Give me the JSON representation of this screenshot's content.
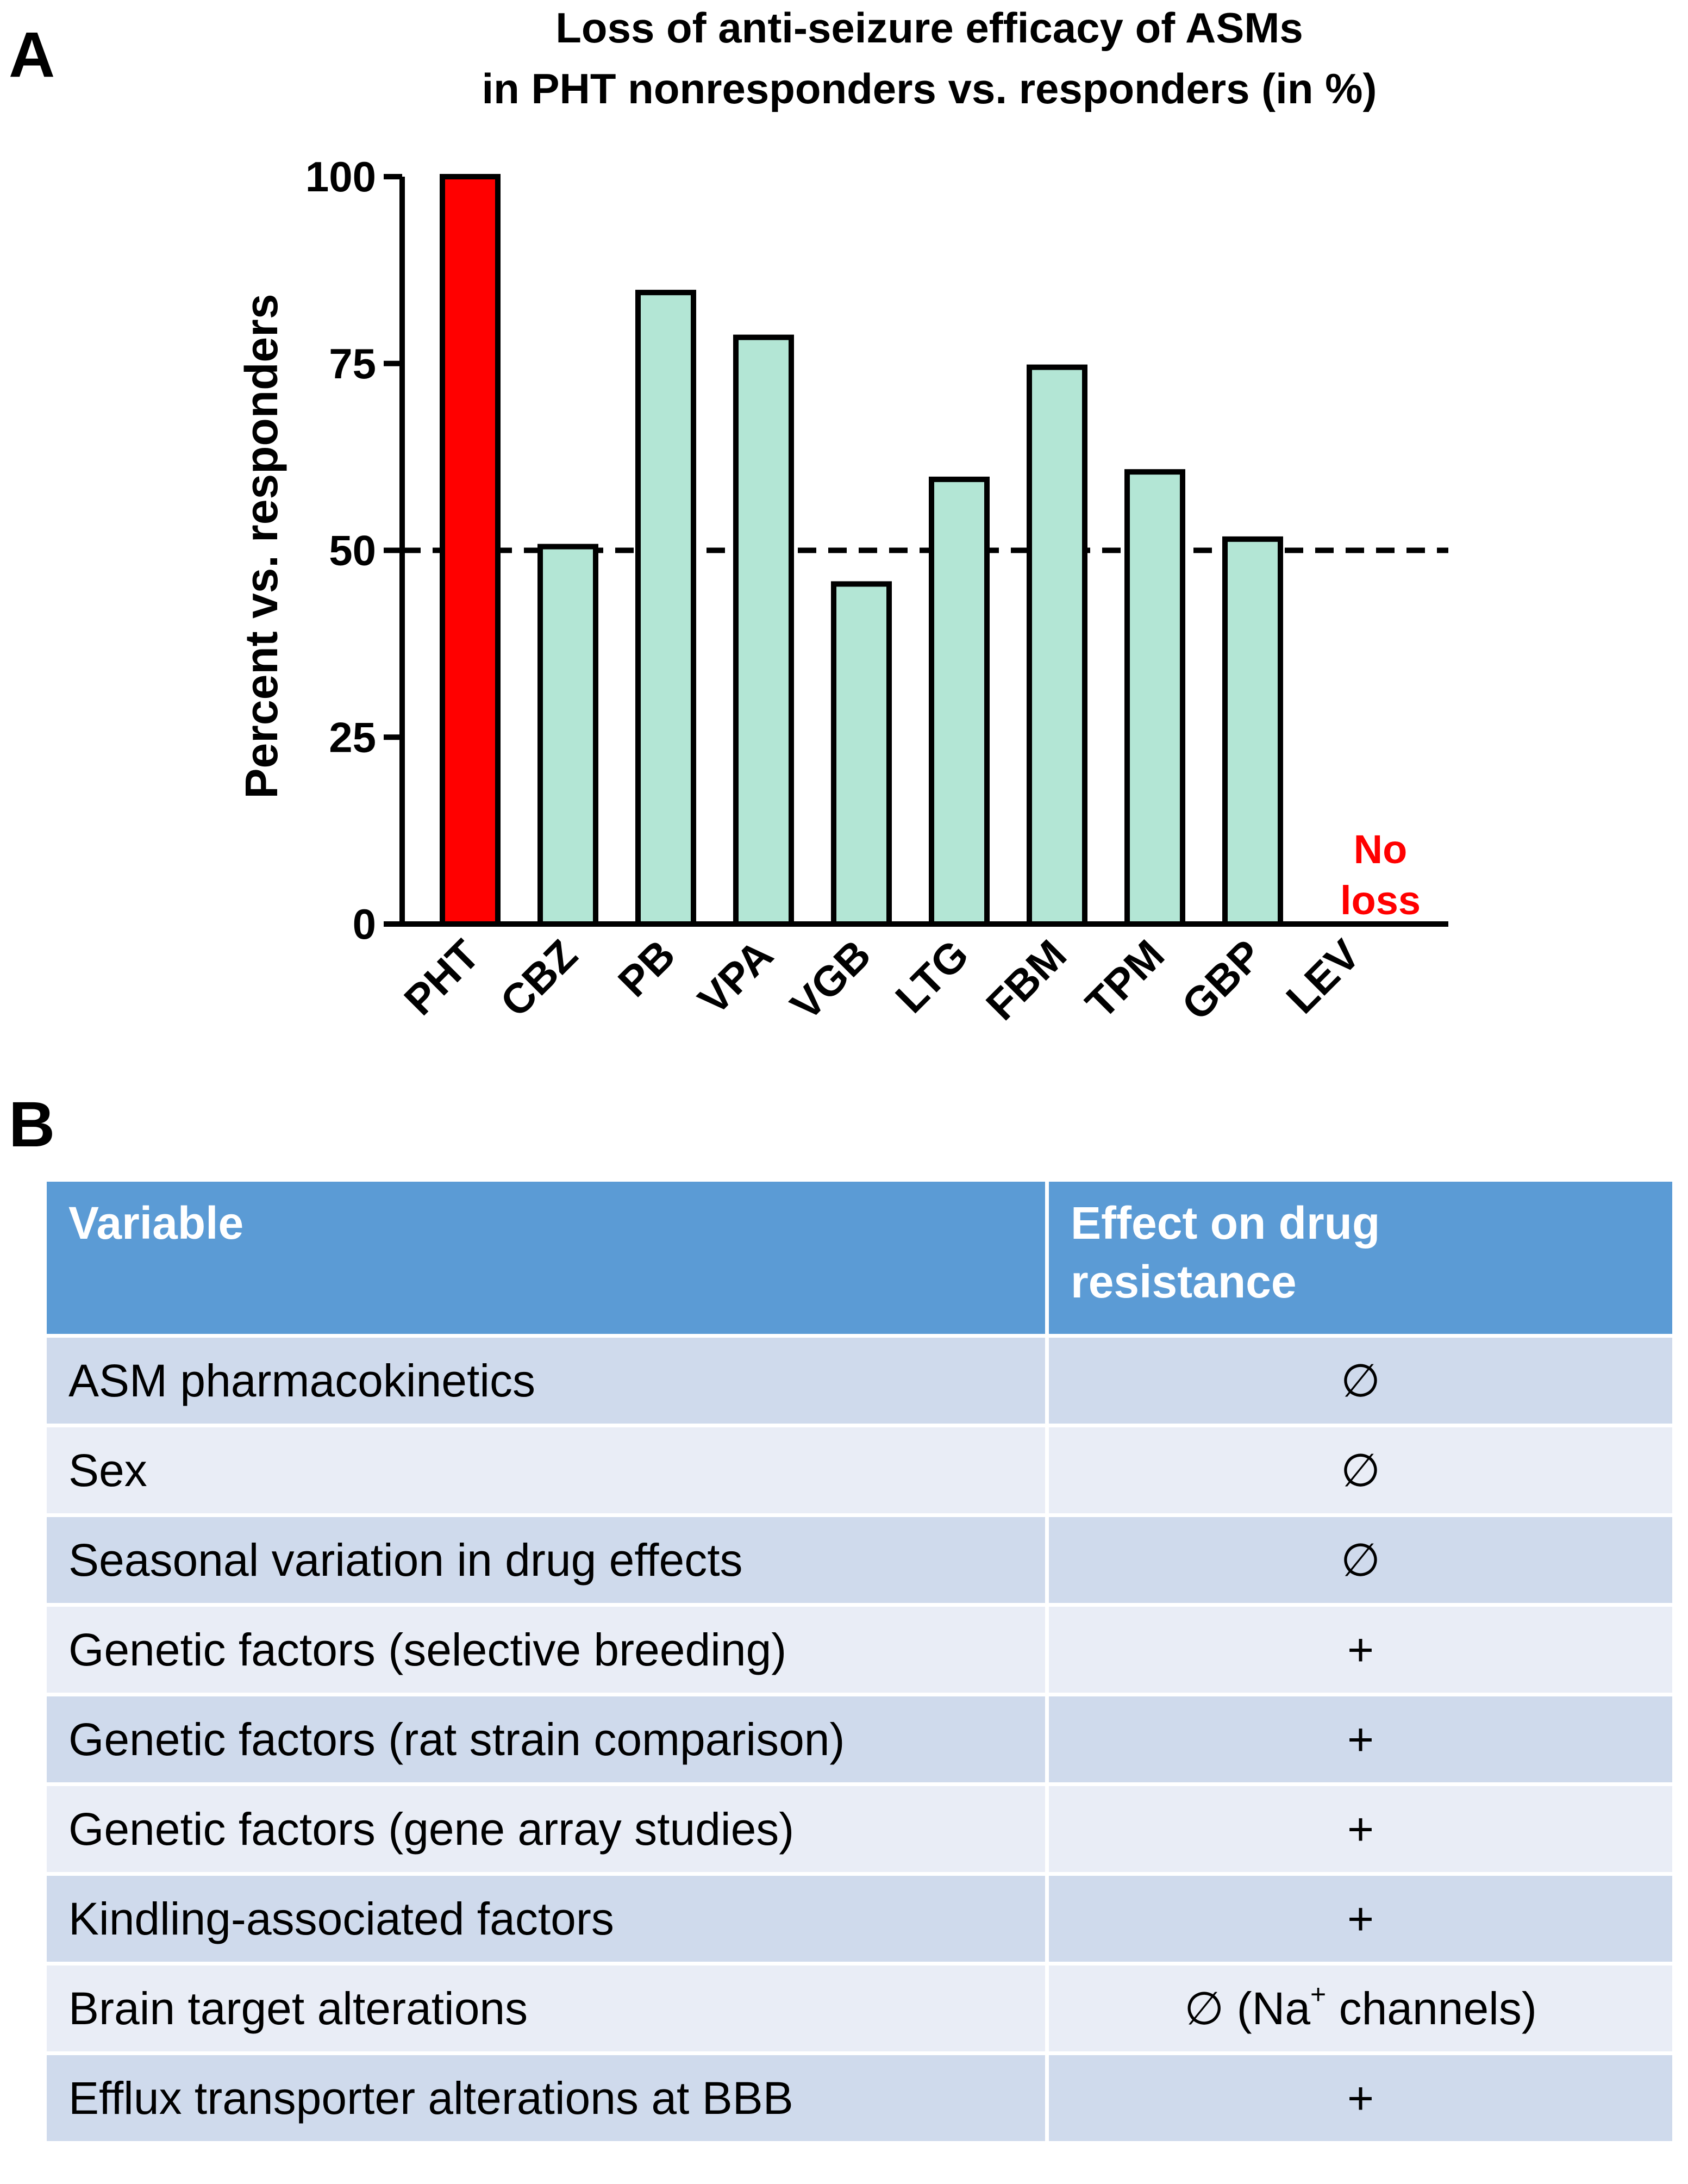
{
  "panel_a_label": "A",
  "panel_b_label": "B",
  "chart_data": {
    "type": "bar",
    "title": "Loss of anti-seizure efficacy of ASMs",
    "subtitle": "in PHT nonresponders vs. responders (in %)",
    "xlabel": "",
    "ylabel": "Percent vs. responders",
    "ylim": [
      0,
      100
    ],
    "yticks": [
      0,
      25,
      50,
      75,
      100
    ],
    "reference_line": 50,
    "categories": [
      "PHT",
      "CBZ",
      "PB",
      "VPA",
      "VGB",
      "LTG",
      "FBM",
      "TPM",
      "GBP",
      "LEV"
    ],
    "values": [
      100,
      50.5,
      84.5,
      78.5,
      45.5,
      59.5,
      74.5,
      60.5,
      51.5,
      0
    ],
    "bar_colors": [
      "#ff0000",
      "#b3e6d5",
      "#b3e6d5",
      "#b3e6d5",
      "#b3e6d5",
      "#b3e6d5",
      "#b3e6d5",
      "#b3e6d5",
      "#b3e6d5",
      "#b3e6d5"
    ],
    "annotation": {
      "category": "LEV",
      "line1": "No",
      "line2": "loss",
      "color": "#ff0000"
    }
  },
  "table": {
    "headers": {
      "variable": "Variable",
      "effect_line1": "Effect on drug",
      "effect_line2": "resistance"
    },
    "rows": [
      {
        "variable": "ASM pharmacokinetics",
        "effect": "∅"
      },
      {
        "variable": "Sex",
        "effect": "∅"
      },
      {
        "variable": "Seasonal variation in drug effects",
        "effect": "∅"
      },
      {
        "variable": "Genetic factors (selective breeding)",
        "effect": "+"
      },
      {
        "variable": "Genetic factors (rat strain comparison)",
        "effect": "+"
      },
      {
        "variable": "Genetic factors (gene array studies)",
        "effect": "+"
      },
      {
        "variable": "Kindling-associated factors",
        "effect": "+"
      },
      {
        "variable": "Brain target alterations",
        "effect": "∅ (Na",
        "effect_sup": "+",
        "effect_tail": " channels)"
      },
      {
        "variable": "Efflux transporter alterations at BBB",
        "effect": "+"
      }
    ]
  }
}
